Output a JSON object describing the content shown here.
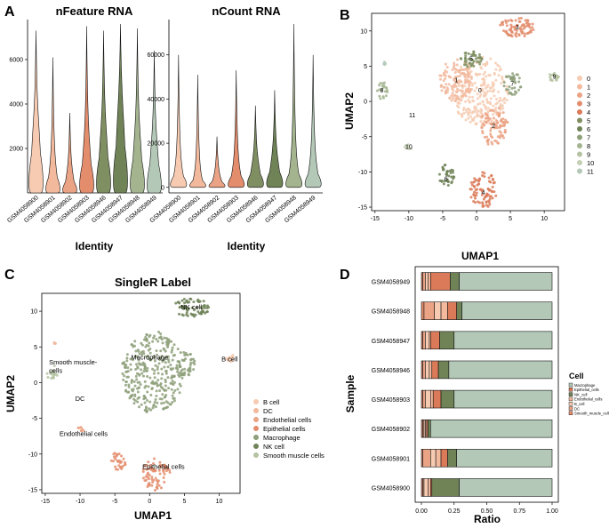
{
  "colors": {
    "c0": "#f6cbb2",
    "c1": "#f2b99d",
    "c2": "#eba385",
    "c3": "#e48d6d",
    "c4": "#da7a58",
    "c5": "#7f8f62",
    "c6": "#6f8357",
    "c7": "#8ea07a",
    "c8": "#a3b48f",
    "c9": "#b5c3a2",
    "c10": "#c3cfb4",
    "c11": "#b3c8b6"
  },
  "chart_data": [
    {
      "panel": "A",
      "type": "violin",
      "title": "nFeature RNA",
      "xlabel": "Identity",
      "ylabel": "",
      "categories": [
        "GSM4058900",
        "GSM4058901",
        "GSM4058902",
        "GSM4058903",
        "GSM4058946",
        "GSM4058947",
        "GSM4058948",
        "GSM4058949"
      ],
      "max_values": [
        7300,
        6100,
        3600,
        7500,
        7300,
        7600,
        7400,
        6400
      ],
      "median_values": [
        1800,
        700,
        500,
        1300,
        1600,
        2100,
        1500,
        1300
      ],
      "yticks": [
        2000,
        4000,
        6000
      ],
      "ylim": [
        0,
        7800
      ]
    },
    {
      "panel": "A",
      "type": "violin",
      "title": "nCount RNA",
      "xlabel": "Identity",
      "ylabel": "",
      "categories": [
        "GSM4058900",
        "GSM4058901",
        "GSM4058902",
        "GSM4058903",
        "GSM4058946",
        "GSM4058947",
        "GSM4058948",
        "GSM4058949"
      ],
      "max_values": [
        60000,
        51000,
        23000,
        53000,
        37000,
        44000,
        74000,
        60000
      ],
      "median_values": [
        5000,
        3000,
        2500,
        5000,
        6000,
        7000,
        6000,
        6000
      ],
      "yticks": [
        0,
        20000,
        40000,
        60000
      ],
      "ylim": [
        -2500,
        76000
      ]
    },
    {
      "panel": "B",
      "type": "scatter",
      "title": "",
      "xlabel": "UMAP1",
      "ylabel": "UMAP2",
      "xticks": [
        -15,
        -10,
        -5,
        0,
        5,
        10
      ],
      "yticks": [
        -15,
        -10,
        -5,
        0,
        5,
        10
      ],
      "xlim": [
        -15.5,
        13
      ],
      "ylim": [
        -15.5,
        12.5
      ],
      "legend": [
        "0",
        "1",
        "2",
        "3",
        "4",
        "5",
        "6",
        "7",
        "8",
        "9",
        "10",
        "11"
      ],
      "cluster_labels": [
        {
          "label": "0",
          "x": 0.5,
          "y": 1.5
        },
        {
          "label": "1",
          "x": -3,
          "y": 3
        },
        {
          "label": "2",
          "x": 2.5,
          "y": -3.5
        },
        {
          "label": "3",
          "x": 6,
          "y": 10.5
        },
        {
          "label": "4",
          "x": 1,
          "y": -13
        },
        {
          "label": "5",
          "x": -0.8,
          "y": 6
        },
        {
          "label": "6",
          "x": -4.5,
          "y": -11
        },
        {
          "label": "7",
          "x": 5.3,
          "y": 2.5
        },
        {
          "label": "8",
          "x": -14,
          "y": 1.5
        },
        {
          "label": "9",
          "x": 11.5,
          "y": 3.5
        },
        {
          "label": "10",
          "x": -10,
          "y": -6.5
        },
        {
          "label": "11",
          "x": -9.5,
          "y": -2
        }
      ]
    },
    {
      "panel": "C",
      "type": "scatter",
      "title": "SingleR Label",
      "xlabel": "UMAP1",
      "ylabel": "UMAP2",
      "xticks": [
        -15,
        -10,
        -5,
        0,
        5,
        10
      ],
      "yticks": [
        -15,
        -10,
        -5,
        0,
        5,
        10
      ],
      "xlim": [
        -15.5,
        13
      ],
      "ylim": [
        -15.5,
        12.5
      ],
      "legend": [
        "B cell",
        "DC",
        "Endothelial cells",
        "Epithelial cells",
        "Macrophage",
        "NK cell",
        "Smooth muscle cells"
      ],
      "cluster_labels": [
        {
          "label": "NK cell",
          "x": 6,
          "y": 10.5
        },
        {
          "label": "Smooth muscle-",
          "x": -11,
          "y": 2.8
        },
        {
          "label": "cells",
          "x": -13.5,
          "y": 1.6
        },
        {
          "label": "Macrophage",
          "x": 0,
          "y": 3.5
        },
        {
          "label": "B cell",
          "x": 11.5,
          "y": 3.2
        },
        {
          "label": "DC",
          "x": -10,
          "y": -2.3
        },
        {
          "label": "Endothelial cells",
          "x": -9.5,
          "y": -7.2
        },
        {
          "label": "Epithelial cells",
          "x": 2,
          "y": -11.8
        }
      ]
    },
    {
      "panel": "D",
      "type": "bar",
      "orientation": "horizontal",
      "stacked": true,
      "title": "",
      "xlabel": "Ratio",
      "ylabel": "Sample",
      "xticks": [
        "0.00",
        "0.25",
        "0.50",
        "0.75",
        "1.00"
      ],
      "xlim": [
        0,
        1
      ],
      "categories": [
        "GSM4058949",
        "GSM4058948",
        "GSM4058947",
        "GSM4058946",
        "GSM4058903",
        "GSM4058902",
        "GSM4058901",
        "GSM4058900"
      ],
      "legend_title": "Cell",
      "legend": [
        "Macrophage",
        "Epithelial_cells",
        "NK_cell",
        "Endothelial_cells",
        "B_cell",
        "DC",
        "Smooth_muscle_cells"
      ],
      "stack_order": [
        "Smooth_muscle_cells",
        "DC",
        "B_cell",
        "Endothelial_cells",
        "Epithelial_cells",
        "NK_cell",
        "Macrophage"
      ],
      "series": [
        {
          "name": "Smooth_muscle_cells",
          "values": [
            0.01,
            0.02,
            0.01,
            0.01,
            0.01,
            0.01,
            0.01,
            0.01
          ]
        },
        {
          "name": "DC",
          "values": [
            0.02,
            0.08,
            0.02,
            0.02,
            0.02,
            0.01,
            0.06,
            0.01
          ]
        },
        {
          "name": "B_cell",
          "values": [
            0.02,
            0.05,
            0.03,
            0.03,
            0.04,
            0.01,
            0.04,
            0.03
          ]
        },
        {
          "name": "Endothelial_cells",
          "values": [
            0.02,
            0.05,
            0.01,
            0.02,
            0.02,
            0.01,
            0.04,
            0.02
          ]
        },
        {
          "name": "Epithelial_cells",
          "values": [
            0.15,
            0.07,
            0.07,
            0.05,
            0.06,
            0.01,
            0.05,
            0.01
          ]
        },
        {
          "name": "NK_cell",
          "values": [
            0.07,
            0.04,
            0.11,
            0.08,
            0.1,
            0.02,
            0.07,
            0.21
          ]
        },
        {
          "name": "Macrophage",
          "values": [
            0.71,
            0.69,
            0.75,
            0.79,
            0.75,
            0.93,
            0.73,
            0.71
          ]
        }
      ]
    }
  ]
}
